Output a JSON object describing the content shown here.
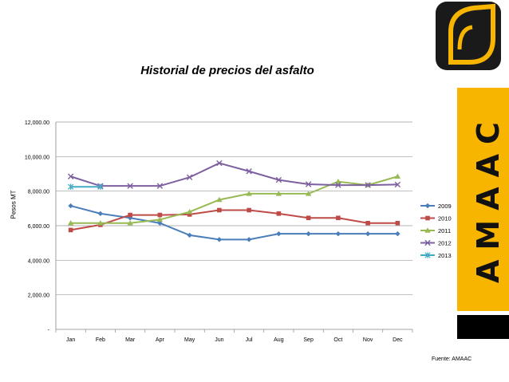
{
  "slide": {
    "source_note": "Fuente: AMAAC",
    "brand_text": "AMAAC"
  },
  "colors": {
    "2009": "#4a7ebb",
    "2010": "#be4b48",
    "2011": "#98b954",
    "2012": "#7d60a0",
    "2013": "#46aac5",
    "brand_yellow": "#f7b500"
  },
  "chart_data": {
    "type": "line",
    "title": "Historial de precios del asfalto",
    "xlabel": "",
    "ylabel": "Pesos MT",
    "categories": [
      "Jan",
      "Feb",
      "Mar",
      "Apr",
      "May",
      "Jun",
      "Jul",
      "Aug",
      "Sep",
      "Oct",
      "Nov",
      "Dec"
    ],
    "ylim": [
      0,
      12000
    ],
    "yticks": [
      0,
      2000,
      4000,
      6000,
      8000,
      10000,
      12000
    ],
    "ytick_labels": [
      "-",
      "2,000.00",
      "4,000.00",
      "6,000.00",
      "8,000.00",
      "10,000.00",
      "12,000.00"
    ],
    "grid": true,
    "legend": "right",
    "series": [
      {
        "name": "2009",
        "marker": "diamond",
        "values": [
          7150,
          6700,
          6450,
          6150,
          5450,
          5200,
          5200,
          5530,
          5530,
          5530,
          5530,
          5530
        ]
      },
      {
        "name": "2010",
        "marker": "square",
        "values": [
          5750,
          6050,
          6620,
          6620,
          6650,
          6900,
          6900,
          6700,
          6450,
          6450,
          6150,
          6150
        ]
      },
      {
        "name": "2011",
        "marker": "triangle",
        "values": [
          6150,
          6150,
          6150,
          6350,
          6800,
          7500,
          7850,
          7850,
          7850,
          8550,
          8350,
          8850
        ]
      },
      {
        "name": "2012",
        "marker": "x",
        "values": [
          8850,
          8300,
          8300,
          8300,
          8800,
          9620,
          9150,
          8650,
          8400,
          8350,
          8350,
          8380
        ]
      },
      {
        "name": "2013",
        "marker": "star",
        "values": [
          8250,
          8250,
          null,
          null,
          null,
          null,
          null,
          null,
          null,
          null,
          null,
          null
        ]
      }
    ]
  }
}
